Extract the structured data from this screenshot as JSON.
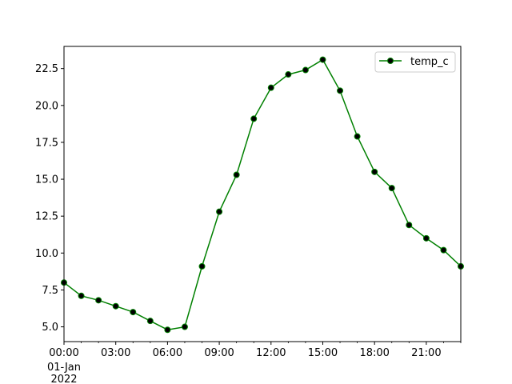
{
  "chart_data": {
    "type": "line",
    "x": [
      "00:00",
      "01:00",
      "02:00",
      "03:00",
      "04:00",
      "05:00",
      "06:00",
      "07:00",
      "08:00",
      "09:00",
      "10:00",
      "11:00",
      "12:00",
      "13:00",
      "14:00",
      "15:00",
      "16:00",
      "17:00",
      "18:00",
      "19:00",
      "20:00",
      "21:00",
      "22:00",
      "23:00"
    ],
    "series": [
      {
        "name": "temp_c",
        "color": "#008000",
        "marker_face": "#000000",
        "values": [
          8.0,
          7.1,
          6.8,
          6.4,
          6.0,
          5.4,
          4.8,
          5.0,
          9.1,
          12.8,
          15.3,
          19.1,
          21.2,
          22.1,
          22.4,
          23.1,
          21.0,
          17.9,
          15.5,
          14.4,
          11.9,
          11.0,
          10.2,
          9.1
        ]
      }
    ],
    "xlim": [
      0,
      23
    ],
    "ylim": [
      4.0,
      24.0
    ],
    "x_ticks": [
      0,
      3,
      6,
      9,
      12,
      15,
      18,
      21
    ],
    "x_tick_labels": [
      "00:00",
      "03:00",
      "06:00",
      "09:00",
      "12:00",
      "15:00",
      "18:00",
      "21:00"
    ],
    "x_tick_sublabel": [
      "01-Jan",
      "2022"
    ],
    "y_ticks": [
      5.0,
      7.5,
      10.0,
      12.5,
      15.0,
      17.5,
      20.0,
      22.5
    ],
    "y_tick_labels": [
      "5.0",
      "7.5",
      "10.0",
      "12.5",
      "15.0",
      "17.5",
      "20.0",
      "22.5"
    ],
    "legend_position": "top-right",
    "grid": false,
    "title": "",
    "xlabel": "",
    "ylabel": ""
  }
}
